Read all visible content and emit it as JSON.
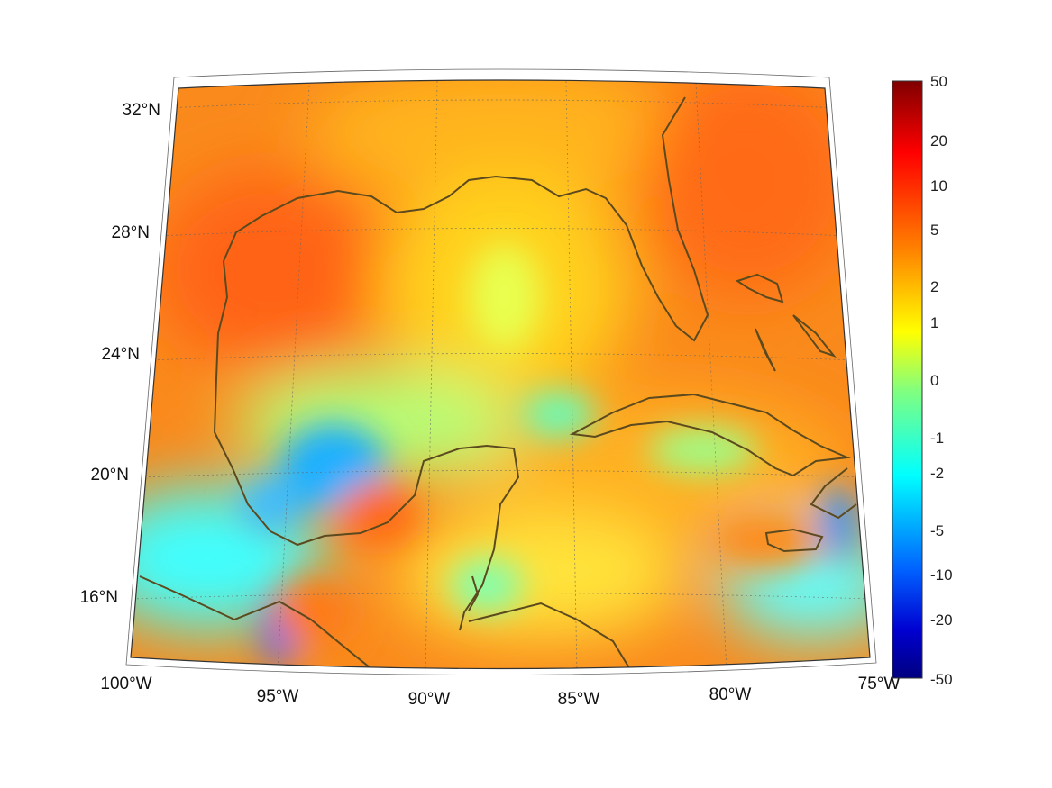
{
  "map": {
    "projection": "conic",
    "field_colormap": "jet",
    "coastline_color": "#5c4a1e",
    "graticule_style": "dotted",
    "lon_labels": [
      "100°W",
      "95°W",
      "90°W",
      "85°W",
      "80°W",
      "75°W"
    ],
    "lat_labels": [
      "32°N",
      "28°N",
      "24°N",
      "20°N",
      "16°N"
    ]
  },
  "colorbar": {
    "ticks": [
      "50",
      "20",
      "10",
      "5",
      "2",
      "1",
      "0",
      "-1",
      "-2",
      "-5",
      "-10",
      "-20",
      "-50"
    ],
    "colors": [
      "#800000",
      "#ff0000",
      "#ff8000",
      "#ffff00",
      "#00ffff",
      "#0000ff",
      "#000080"
    ]
  }
}
